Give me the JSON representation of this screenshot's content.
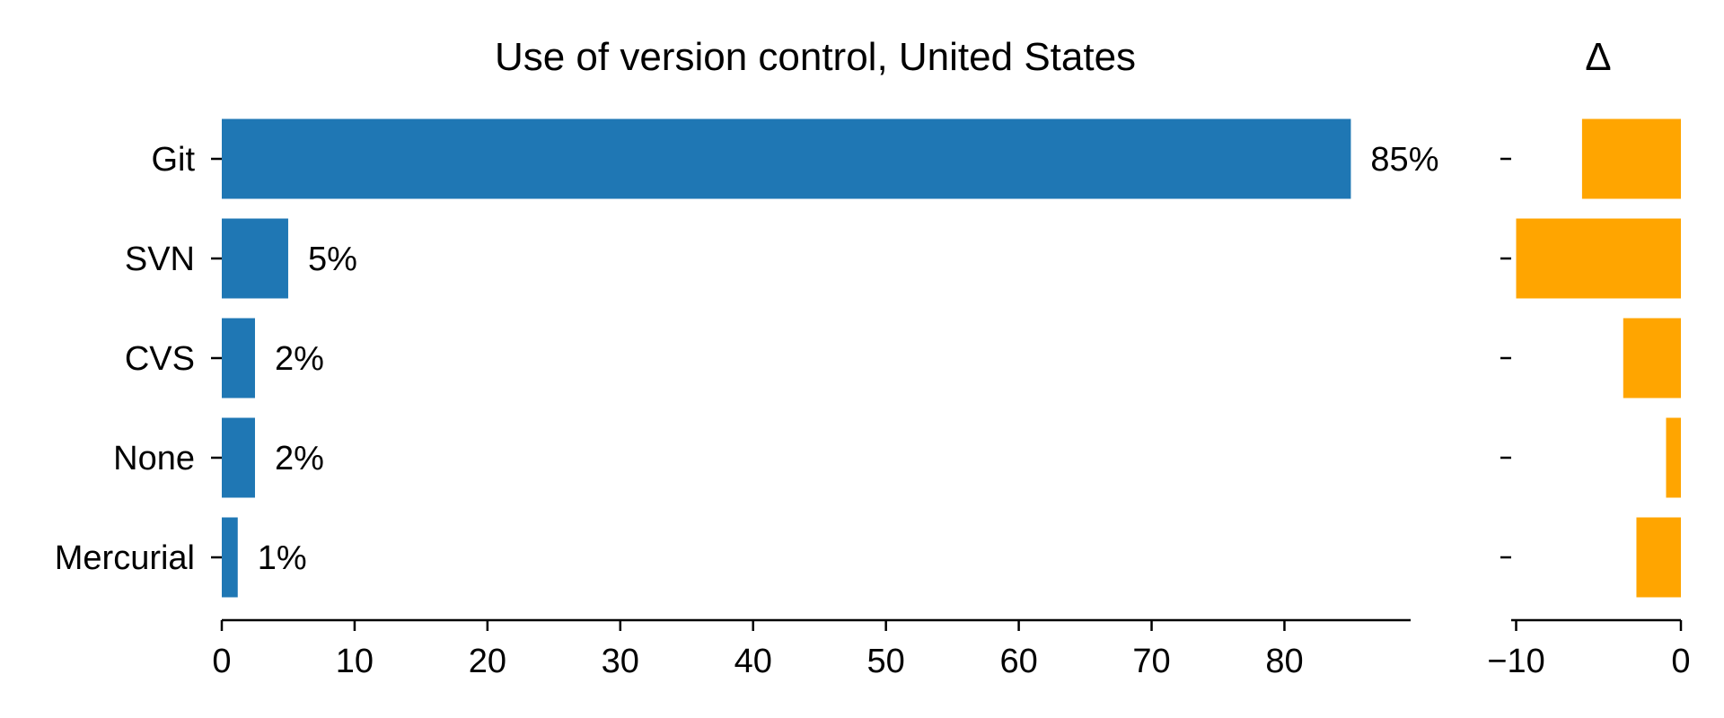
{
  "chart_data": [
    {
      "type": "bar",
      "orientation": "horizontal",
      "title": "Use of version control, United States",
      "categories": [
        "Git",
        "SVN",
        "CVS",
        "None",
        "Mercurial"
      ],
      "values": [
        85,
        5,
        2.5,
        2.5,
        1.2
      ],
      "data_labels": [
        "85%",
        "5%",
        "2%",
        "2%",
        "1%"
      ],
      "xlim": [
        0,
        89.5
      ],
      "xticks": [
        0,
        10,
        20,
        30,
        40,
        50,
        60,
        70,
        80
      ],
      "tick_labels": [
        "0",
        "10",
        "20",
        "30",
        "40",
        "50",
        "60",
        "70",
        "80"
      ],
      "xlabel": "",
      "ylabel": "",
      "grid": false,
      "color": "#1f77b4"
    },
    {
      "type": "bar",
      "orientation": "horizontal",
      "title": "Δ",
      "categories": [
        "Git",
        "SVN",
        "CVS",
        "None",
        "Mercurial"
      ],
      "values": [
        -6,
        -10,
        -3.5,
        -0.9,
        -2.7
      ],
      "xlim": [
        -10.3,
        0
      ],
      "xticks": [
        -10,
        0
      ],
      "tick_labels": [
        "−10",
        "0"
      ],
      "xlabel": "",
      "ylabel": "",
      "grid": false,
      "color": "#ffa500"
    }
  ]
}
